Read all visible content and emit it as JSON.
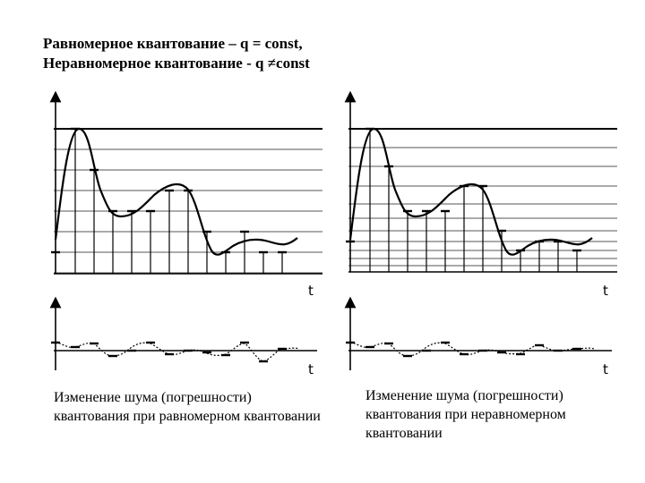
{
  "heading": {
    "line1": "Равномерное квантование – q = const,",
    "line2": "Неравномерное квантование - q ≠const"
  },
  "axes": {
    "time_label_signal": "t",
    "time_label_noise": "t"
  },
  "captions": {
    "uniform": "Изменение шума (погрешности) квантования при равномерном квантовании",
    "nonuniform": "Изменение шума (погрешности) квантования при неравномерном квантовании"
  }
}
